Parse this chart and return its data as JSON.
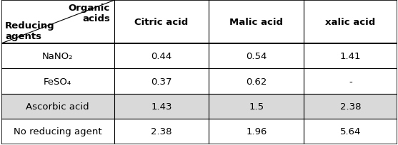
{
  "col_headers": [
    "Citric acid",
    "Malic acid",
    "xalic acid"
  ],
  "row_headers": [
    "NaNO₂",
    "FeSO₄",
    "Ascorbic acid",
    "No reducing agent"
  ],
  "header_top_right": "Organic\nacids",
  "header_bottom_left": "Reducing\nagents",
  "values": [
    [
      "0.44",
      "0.54",
      "1.41"
    ],
    [
      "0.37",
      "0.62",
      "-"
    ],
    [
      "1.43",
      "1.5",
      "2.38"
    ],
    [
      "2.38",
      "1.96",
      "5.64"
    ]
  ],
  "highlighted_row": 2,
  "highlight_color": "#d9d9d9",
  "bg_color": "#ffffff",
  "border_color": "#000000",
  "text_color": "#000000",
  "font_size": 9.5,
  "header_font_size": 9.5
}
